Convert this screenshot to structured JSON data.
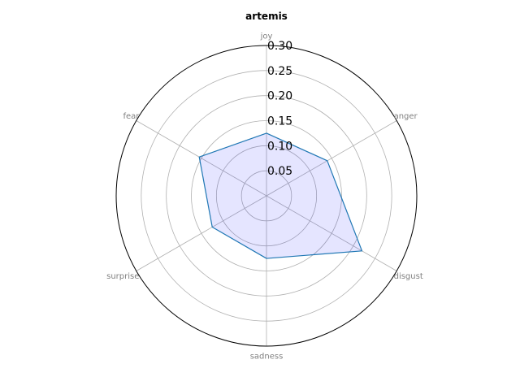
{
  "chart_data": {
    "type": "radar",
    "title": "artemis",
    "axes": [
      "joy",
      "anger",
      "disgust",
      "sadness",
      "surprise",
      "fear"
    ],
    "series": [
      {
        "values": [
          0.125,
          0.14,
          0.22,
          0.125,
          0.125,
          0.155
        ],
        "line_color": "#1f77b4",
        "fill_color": "#0000ff",
        "fill_opacity": 0.1
      }
    ],
    "r_ticks": [
      0.05,
      0.1,
      0.15,
      0.2,
      0.25,
      0.3
    ],
    "r_tick_labels": [
      "0.05",
      "0.10",
      "0.15",
      "0.20",
      "0.25",
      "0.30"
    ],
    "rlim": [
      0,
      0.3
    ],
    "grid": true
  }
}
